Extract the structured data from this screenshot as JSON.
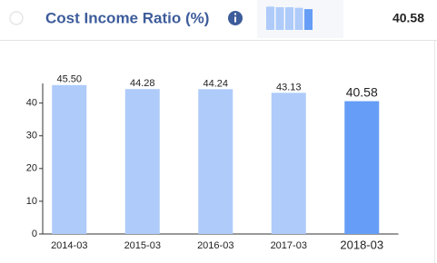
{
  "header": {
    "title": "Cost Income Ratio (%)",
    "value": "40.58"
  },
  "chart_data": {
    "type": "bar",
    "categories": [
      "2014-03",
      "2015-03",
      "2016-03",
      "2017-03",
      "2018-03"
    ],
    "values": [
      45.5,
      44.28,
      44.24,
      43.13,
      40.58
    ],
    "value_labels": [
      "45.50",
      "44.28",
      "44.24",
      "43.13",
      "40.58"
    ],
    "colors": [
      "#aecbfa",
      "#aecbfa",
      "#aecbfa",
      "#aecbfa",
      "#669df6"
    ],
    "ylim": [
      0,
      46
    ],
    "yticks": [
      0,
      10,
      20,
      30,
      40
    ],
    "grid": false
  }
}
